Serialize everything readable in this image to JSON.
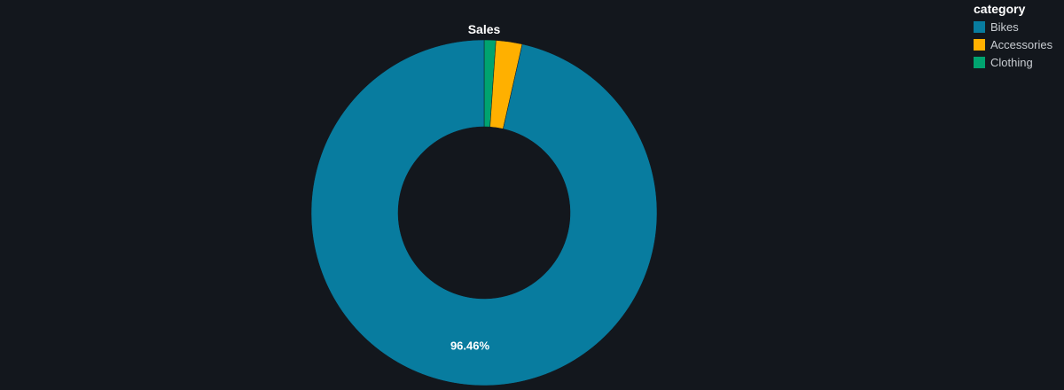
{
  "chart_data": {
    "type": "pie",
    "title": "Sales",
    "hole": true,
    "categories": [
      "Bikes",
      "Accessories",
      "Clothing"
    ],
    "values": [
      96.46,
      2.45,
      1.09
    ],
    "slice_labels": [
      "96.46%",
      "",
      ""
    ],
    "colors": [
      "#087c9f",
      "#ffb000",
      "#00a36f"
    ],
    "legend_title": "category",
    "legend_position": "top-right"
  }
}
